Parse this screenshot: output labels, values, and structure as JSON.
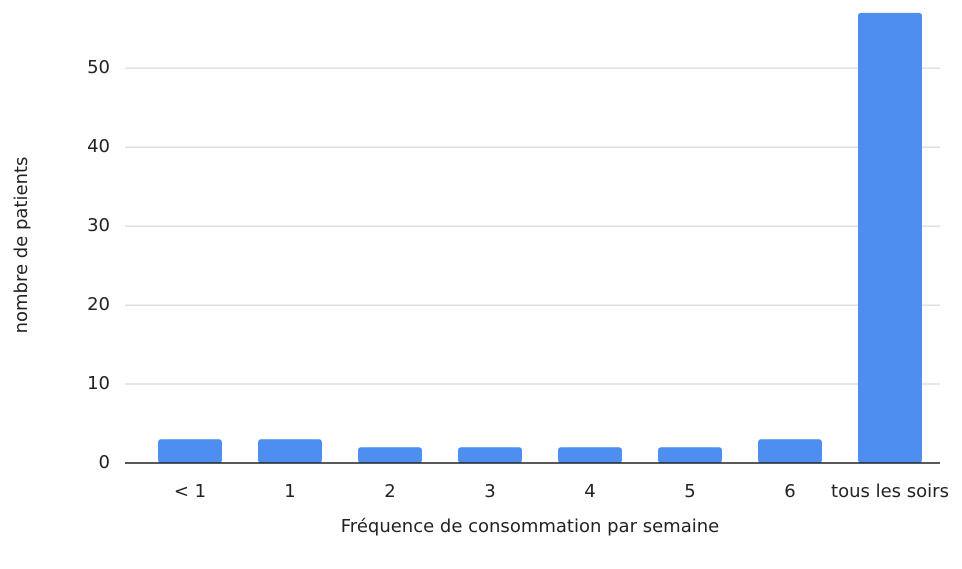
{
  "chart_data": {
    "type": "bar",
    "x_label": "Fréquence de consommation par semaine",
    "y_label": "nombre de patients",
    "categories": [
      "< 1",
      "1",
      "2",
      "3",
      "4",
      "5",
      "6",
      "tous les soirs"
    ],
    "values": [
      3,
      3,
      2,
      2,
      2,
      2,
      3,
      57
    ],
    "color": "#4d8ef0",
    "ylim": [
      0,
      58
    ],
    "yticks": [
      0,
      10,
      20,
      30,
      40,
      50
    ],
    "grid": true
  }
}
